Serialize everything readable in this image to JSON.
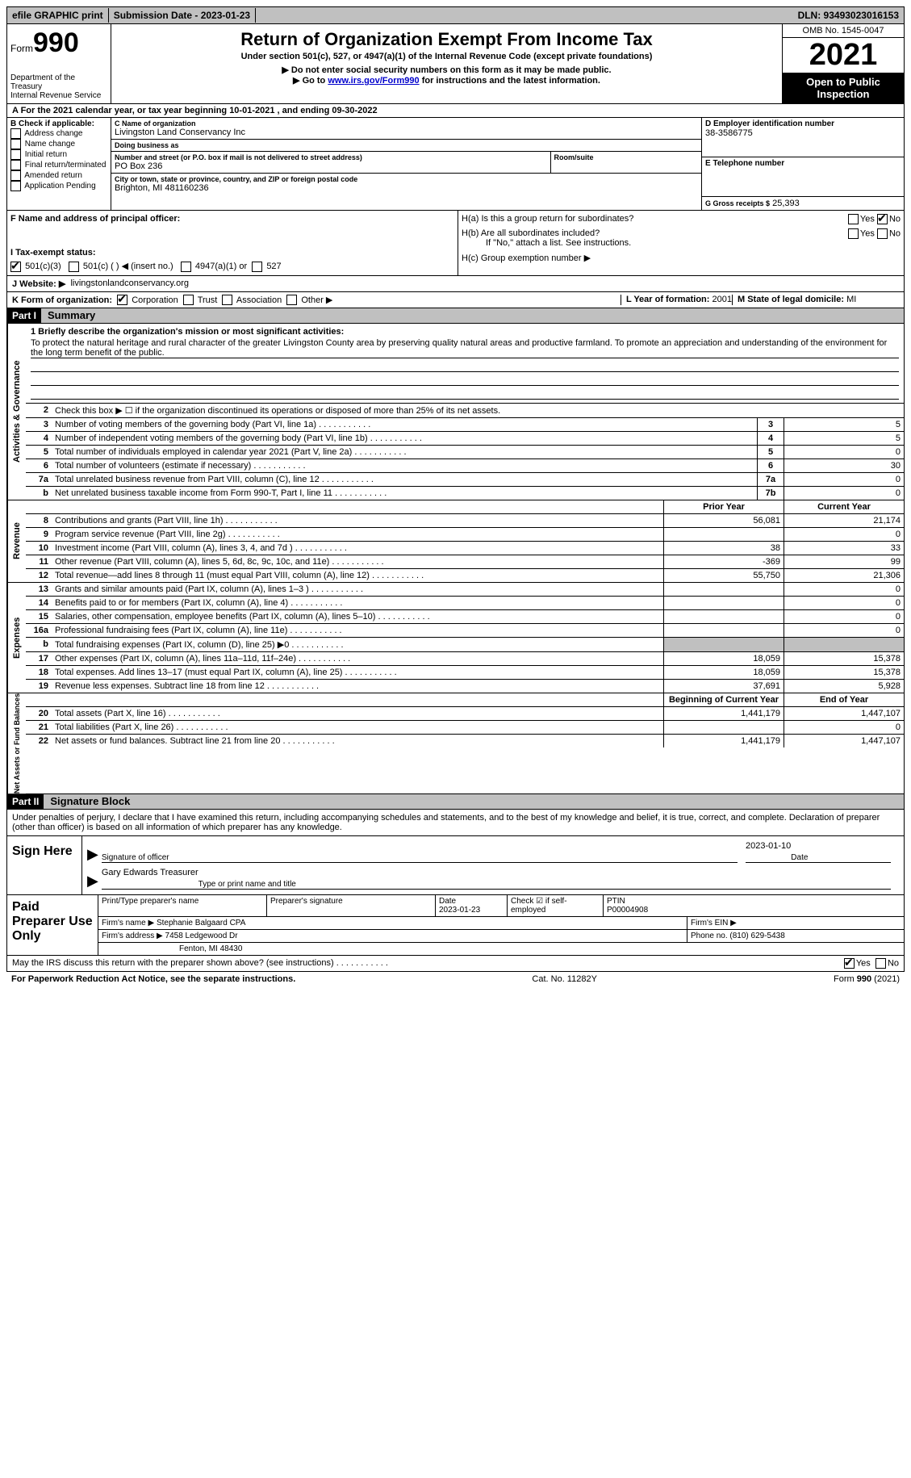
{
  "topbar": {
    "efile": "efile GRAPHIC print",
    "submission": "Submission Date - 2023-01-23",
    "dln": "DLN: 93493023016153"
  },
  "header": {
    "form_label": "Form",
    "form_num": "990",
    "title": "Return of Organization Exempt From Income Tax",
    "subtitle": "Under section 501(c), 527, or 4947(a)(1) of the Internal Revenue Code (except private foundations)",
    "note1": "▶ Do not enter social security numbers on this form as it may be made public.",
    "note2_pre": "▶ Go to ",
    "note2_link": "www.irs.gov/Form990",
    "note2_post": " for instructions and the latest information.",
    "dept": "Department of the Treasury",
    "irs": "Internal Revenue Service",
    "omb": "OMB No. 1545-0047",
    "year": "2021",
    "otp": "Open to Public Inspection"
  },
  "lineA": "A For the 2021 calendar year, or tax year beginning 10-01-2021    , and ending 09-30-2022",
  "secB": {
    "title": "B Check if applicable:",
    "opts": [
      "Address change",
      "Name change",
      "Initial return",
      "Final return/terminated",
      "Amended return",
      "Application Pending"
    ]
  },
  "secC": {
    "name_lbl": "C Name of organization",
    "name": "Livingston Land Conservancy Inc",
    "dba_lbl": "Doing business as",
    "dba": "",
    "street_lbl": "Number and street (or P.O. box if mail is not delivered to street address)",
    "street": "PO Box 236",
    "room_lbl": "Room/suite",
    "room": "",
    "city_lbl": "City or town, state or province, country, and ZIP or foreign postal code",
    "city": "Brighton, MI  481160236"
  },
  "secD": {
    "ein_lbl": "D Employer identification number",
    "ein": "38-3586775",
    "phone_lbl": "E Telephone number",
    "phone": "",
    "gross_lbl": "G Gross receipts $",
    "gross": "25,393"
  },
  "secF": {
    "lbl": "F  Name and address of principal officer:",
    "val": ""
  },
  "secH": {
    "ha": "H(a)  Is this a group return for subordinates?",
    "hb": "H(b)  Are all subordinates included?",
    "hb_note": "If \"No,\" attach a list. See instructions.",
    "hc": "H(c)  Group exemption number ▶"
  },
  "secI": {
    "lbl": "I   Tax-exempt status:",
    "o1": "501(c)(3)",
    "o2": "501(c) (   ) ◀ (insert no.)",
    "o3": "4947(a)(1) or",
    "o4": "527"
  },
  "secJ": {
    "lbl": "J   Website: ▶",
    "val": "livingstonlandconservancy.org"
  },
  "secK": {
    "lbl": "K Form of organization:",
    "opts": [
      "Corporation",
      "Trust",
      "Association",
      "Other ▶"
    ],
    "L_lbl": "L Year of formation:",
    "L_val": "2001",
    "M_lbl": "M State of legal domicile:",
    "M_val": "MI"
  },
  "part1": {
    "num": "Part I",
    "title": "Summary"
  },
  "mission": {
    "lbl": "1   Briefly describe the organization's mission or most significant activities:",
    "txt": "To protect the natural heritage and rural character of the greater Livingston County area by preserving quality natural areas and productive farmland. To promote an appreciation and understanding of the environment for the long term benefit of the public."
  },
  "line2": "Check this box ▶ ☐ if the organization discontinued its operations or disposed of more than 25% of its net assets.",
  "vtabs": {
    "ag": "Activities & Governance",
    "rev": "Revenue",
    "exp": "Expenses",
    "na": "Net Assets or Fund Balances"
  },
  "lines_ag": [
    {
      "n": "3",
      "t": "Number of voting members of the governing body (Part VI, line 1a)",
      "b": "3",
      "v": "5"
    },
    {
      "n": "4",
      "t": "Number of independent voting members of the governing body (Part VI, line 1b)",
      "b": "4",
      "v": "5"
    },
    {
      "n": "5",
      "t": "Total number of individuals employed in calendar year 2021 (Part V, line 2a)",
      "b": "5",
      "v": "0"
    },
    {
      "n": "6",
      "t": "Total number of volunteers (estimate if necessary)",
      "b": "6",
      "v": "30"
    },
    {
      "n": "7a",
      "t": "Total unrelated business revenue from Part VIII, column (C), line 12",
      "b": "7a",
      "v": "0"
    },
    {
      "n": "b",
      "t": "Net unrelated business taxable income from Form 990-T, Part I, line 11",
      "b": "7b",
      "v": "0"
    }
  ],
  "col_hdr": {
    "py": "Prior Year",
    "cy": "Current Year"
  },
  "lines_rev": [
    {
      "n": "8",
      "t": "Contributions and grants (Part VIII, line 1h)",
      "py": "56,081",
      "cy": "21,174"
    },
    {
      "n": "9",
      "t": "Program service revenue (Part VIII, line 2g)",
      "py": "",
      "cy": "0"
    },
    {
      "n": "10",
      "t": "Investment income (Part VIII, column (A), lines 3, 4, and 7d )",
      "py": "38",
      "cy": "33"
    },
    {
      "n": "11",
      "t": "Other revenue (Part VIII, column (A), lines 5, 6d, 8c, 9c, 10c, and 11e)",
      "py": "-369",
      "cy": "99"
    },
    {
      "n": "12",
      "t": "Total revenue—add lines 8 through 11 (must equal Part VIII, column (A), line 12)",
      "py": "55,750",
      "cy": "21,306"
    }
  ],
  "lines_exp": [
    {
      "n": "13",
      "t": "Grants and similar amounts paid (Part IX, column (A), lines 1–3 )",
      "py": "",
      "cy": "0"
    },
    {
      "n": "14",
      "t": "Benefits paid to or for members (Part IX, column (A), line 4)",
      "py": "",
      "cy": "0"
    },
    {
      "n": "15",
      "t": "Salaries, other compensation, employee benefits (Part IX, column (A), lines 5–10)",
      "py": "",
      "cy": "0"
    },
    {
      "n": "16a",
      "t": "Professional fundraising fees (Part IX, column (A), line 11e)",
      "py": "",
      "cy": "0"
    },
    {
      "n": "b",
      "t": "Total fundraising expenses (Part IX, column (D), line 25) ▶0",
      "py": "shade",
      "cy": "shade"
    },
    {
      "n": "17",
      "t": "Other expenses (Part IX, column (A), lines 11a–11d, 11f–24e)",
      "py": "18,059",
      "cy": "15,378"
    },
    {
      "n": "18",
      "t": "Total expenses. Add lines 13–17 (must equal Part IX, column (A), line 25)",
      "py": "18,059",
      "cy": "15,378"
    },
    {
      "n": "19",
      "t": "Revenue less expenses. Subtract line 18 from line 12",
      "py": "37,691",
      "cy": "5,928"
    }
  ],
  "col_hdr2": {
    "py": "Beginning of Current Year",
    "cy": "End of Year"
  },
  "lines_na": [
    {
      "n": "20",
      "t": "Total assets (Part X, line 16)",
      "py": "1,441,179",
      "cy": "1,447,107"
    },
    {
      "n": "21",
      "t": "Total liabilities (Part X, line 26)",
      "py": "",
      "cy": "0"
    },
    {
      "n": "22",
      "t": "Net assets or fund balances. Subtract line 21 from line 20",
      "py": "1,441,179",
      "cy": "1,447,107"
    }
  ],
  "part2": {
    "num": "Part II",
    "title": "Signature Block"
  },
  "sig_decl": "Under penalties of perjury, I declare that I have examined this return, including accompanying schedules and statements, and to the best of my knowledge and belief, it is true, correct, and complete. Declaration of preparer (other than officer) is based on all information of which preparer has any knowledge.",
  "sign": {
    "here": "Sign Here",
    "sig_lbl": "Signature of officer",
    "date": "2023-01-10",
    "date_lbl": "Date",
    "name": "Gary Edwards  Treasurer",
    "name_lbl": "Type or print name and title"
  },
  "prep": {
    "title": "Paid Preparer Use Only",
    "r1": {
      "c1": "Print/Type preparer's name",
      "c2": "Preparer's signature",
      "c3_lbl": "Date",
      "c3": "2023-01-23",
      "c4": "Check ☑ if self-employed",
      "c5_lbl": "PTIN",
      "c5": "P00004908"
    },
    "r2": {
      "lbl": "Firm's name      ▶",
      "val": "Stephanie Balgaard CPA",
      "ein": "Firm's EIN ▶"
    },
    "r3": {
      "lbl": "Firm's address ▶",
      "val": "7458 Ledgewood Dr",
      "phone_lbl": "Phone no.",
      "phone": "(810) 629-5438"
    },
    "r3b": "Fenton, MI  48430"
  },
  "discuss": {
    "txt": "May the IRS discuss this return with the preparer shown above? (see instructions)",
    "yes": "Yes",
    "no": "No"
  },
  "footer": {
    "left": "For Paperwork Reduction Act Notice, see the separate instructions.",
    "mid": "Cat. No. 11282Y",
    "right": "Form 990 (2021)"
  }
}
